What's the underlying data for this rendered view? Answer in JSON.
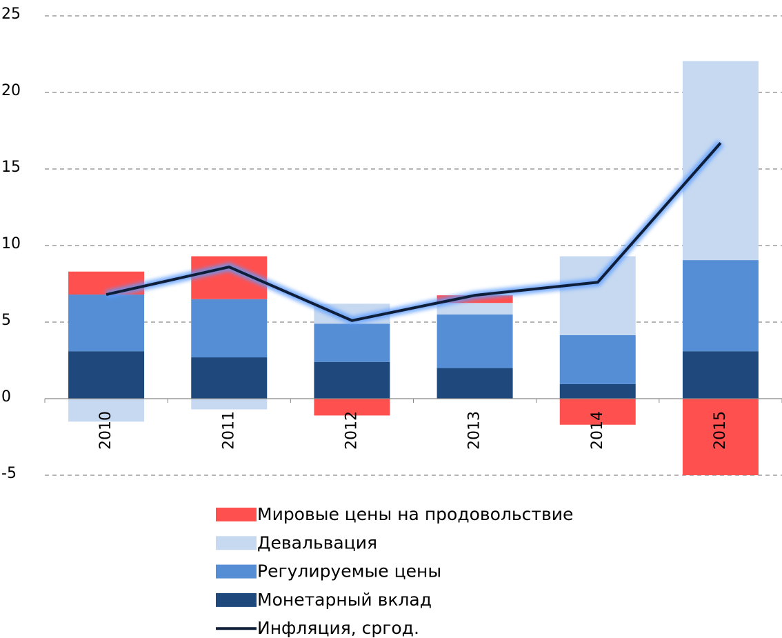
{
  "chart_data": {
    "type": "bar",
    "stacked": true,
    "categories": [
      "2010",
      "2011",
      "2012",
      "2013",
      "2014",
      "2015"
    ],
    "series": [
      {
        "name": "Монетарный вклад",
        "color": "#1f497d",
        "values": [
          3.1,
          2.7,
          2.4,
          2.0,
          0.95,
          3.1
        ]
      },
      {
        "name": "Регулируемые цены",
        "color": "#558ed5",
        "values": [
          3.7,
          3.8,
          2.5,
          3.5,
          3.2,
          5.95
        ]
      },
      {
        "name": "Девальвация",
        "color": "#c6d9f1",
        "values": [
          -1.5,
          -0.7,
          1.3,
          0.75,
          5.15,
          13.0
        ]
      },
      {
        "name": "Мировые цены на продовольствие",
        "color": "#ff5050",
        "values": [
          1.5,
          2.8,
          -1.1,
          0.5,
          -1.7,
          -5.0
        ]
      },
      {
        "name": "Инфляция, сргод.",
        "type": "line",
        "color": "#0f1f3a",
        "values": [
          6.8,
          8.6,
          5.1,
          6.75,
          7.6,
          16.7
        ]
      }
    ],
    "ylim": [
      -5,
      25
    ],
    "yticks": [
      -5,
      0,
      5,
      10,
      15,
      20,
      25
    ],
    "grid": true
  }
}
